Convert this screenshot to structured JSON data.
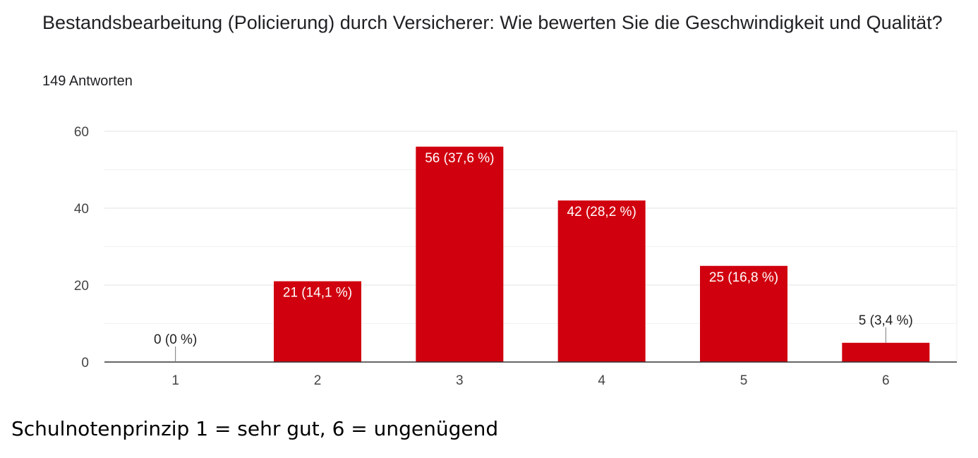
{
  "header": {
    "title": "Bestandsbearbeitung (Policierung) durch Versicherer: Wie bewerten Sie die Geschwindigkeit und Qualität?",
    "response_count": "149 Antworten"
  },
  "footnote": "Schulnotenprinzip 1 = sehr gut, 6 = ungenügend",
  "colors": {
    "bar": "#d0000e",
    "grid": "#e6e6e6",
    "axis": "#333333",
    "tick_text": "#444444",
    "inside_label": "#ffffff",
    "outside_label": "#222222"
  },
  "chart_data": {
    "type": "bar",
    "categories": [
      "1",
      "2",
      "3",
      "4",
      "5",
      "6"
    ],
    "values": [
      0,
      21,
      56,
      42,
      25,
      5
    ],
    "data_labels": [
      "0 (0 %)",
      "21 (14,1 %)",
      "56 (37,6 %)",
      "42 (28,2 %)",
      "25 (16,8 %)",
      "5 (3,4 %)"
    ],
    "yticks": [
      0,
      20,
      40,
      60
    ],
    "ylim": [
      0,
      60
    ],
    "minor_grid_step": 10,
    "grid": true,
    "legend": "none",
    "xlabel": "",
    "ylabel": ""
  }
}
